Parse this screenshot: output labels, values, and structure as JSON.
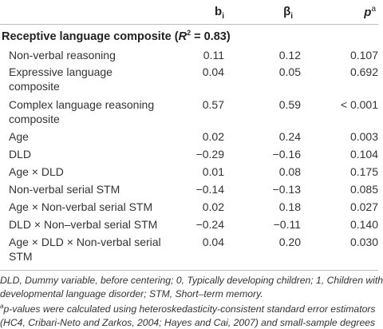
{
  "header": {
    "col_b": "b",
    "col_b_sub": "i",
    "col_beta": "β",
    "col_beta_sub": "i",
    "col_p": "p",
    "col_p_sup": "a"
  },
  "section": {
    "title_prefix": "Receptive language composite (",
    "title_r": "R",
    "title_r_sup": "2",
    "title_suffix": " = 0.83)"
  },
  "rows": [
    {
      "label": [
        "Non-verbal reasoning"
      ],
      "b": "0.11",
      "beta": "0.12",
      "p": "0.107"
    },
    {
      "label": [
        "Expressive language",
        "composite"
      ],
      "b": "0.04",
      "beta": "0.05",
      "p": "0.692"
    },
    {
      "label": [
        "Complex language reasoning",
        "composite"
      ],
      "b": "0.57",
      "beta": "0.59",
      "p": "< 0.001"
    },
    {
      "label": [
        "Age"
      ],
      "b": "0.02",
      "beta": "0.24",
      "p": "0.003"
    },
    {
      "label": [
        "DLD"
      ],
      "b": "−0.29",
      "beta": "−0.16",
      "p": "0.104"
    },
    {
      "label": [
        "Age × DLD"
      ],
      "b": "0.01",
      "beta": "0.08",
      "p": "0.175"
    },
    {
      "label": [
        "Non-verbal serial STM"
      ],
      "b": "−0.14",
      "beta": "−0.13",
      "p": "0.085"
    },
    {
      "label": [
        "Age × Non-verbal serial STM"
      ],
      "b": "0.02",
      "beta": "0.18",
      "p": "0.027"
    },
    {
      "label": [
        "DLD × Non–verbal serial STM"
      ],
      "b": "−0.24",
      "beta": "−0.11",
      "p": "0.140"
    },
    {
      "label": [
        "Age × DLD × Non-verbal serial",
        "STM"
      ],
      "b": "0.04",
      "beta": "0.20",
      "p": "0.030"
    }
  ],
  "footnotes": {
    "line1": "DLD, Dummy variable, before centering; 0, Typically developing children; 1, Children with",
    "line2": "developmental language disorder; STM, Short–term memory.",
    "line3_sup": "a",
    "line3": "p-values were calculated using heteroskedasticity-consistent standard error estimators",
    "line4": "(HC4, Cribari-Neto and Zarkos, 2004; Hayes and Cai, 2007) and small-sample degrees"
  }
}
